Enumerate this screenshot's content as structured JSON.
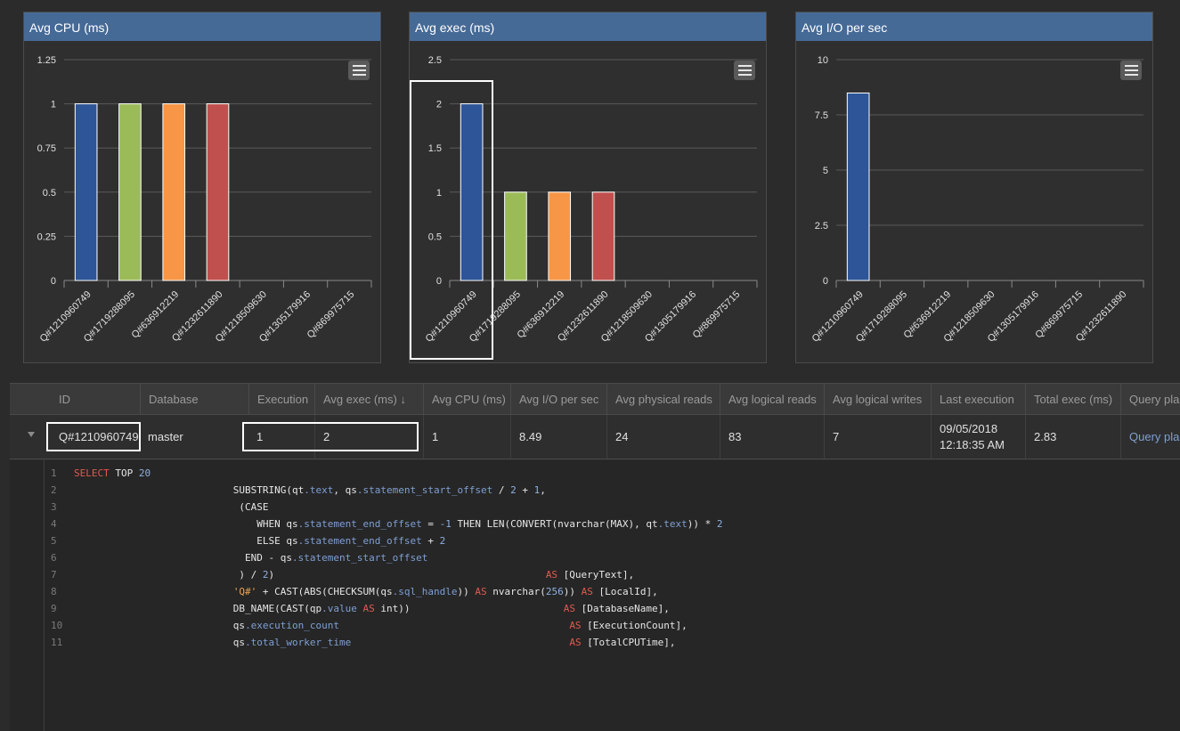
{
  "charts": [
    {
      "title": "Avg CPU (ms)",
      "type": "bar",
      "yticks": [
        "1.25",
        "1",
        "0.75",
        "0.5",
        "0.25",
        "0"
      ],
      "ylim": [
        0,
        1.25
      ],
      "categories": [
        "Q#1210960749",
        "Q#1719288095",
        "Q#636912219",
        "Q#1232611890",
        "Q#1218509630",
        "Q#1305179916",
        "Q#869975715"
      ],
      "values": [
        1,
        1,
        1,
        1,
        0,
        0,
        0
      ],
      "colors": [
        "#2e5597",
        "#9bbb59",
        "#f79646",
        "#c0504d",
        "#2e5597",
        "#2e5597",
        "#2e5597"
      ]
    },
    {
      "title": "Avg exec (ms)",
      "type": "bar",
      "yticks": [
        "2.5",
        "2",
        "1.5",
        "1",
        "0.5",
        "0"
      ],
      "ylim": [
        0,
        2.5
      ],
      "categories": [
        "Q#1210960749",
        "Q#1719288095",
        "Q#636912219",
        "Q#1232611890",
        "Q#1218509630",
        "Q#1305179916",
        "Q#869975715"
      ],
      "values": [
        2,
        1,
        1,
        1,
        0,
        0,
        0
      ],
      "colors": [
        "#2e5597",
        "#9bbb59",
        "#f79646",
        "#c0504d",
        "#2e5597",
        "#2e5597",
        "#2e5597"
      ]
    },
    {
      "title": "Avg I/O per sec",
      "type": "bar",
      "yticks": [
        "10",
        "7.5",
        "5",
        "2.5",
        "0"
      ],
      "ylim": [
        0,
        10
      ],
      "categories": [
        "Q#1210960749",
        "Q#1719288095",
        "Q#636912219",
        "Q#1218509630",
        "Q#1305179916",
        "Q#869975715",
        "Q#1232611890"
      ],
      "values": [
        8.49,
        0,
        0,
        0,
        0,
        0,
        0
      ],
      "colors": [
        "#2e5597",
        "#2e5597",
        "#2e5597",
        "#2e5597",
        "#2e5597",
        "#2e5597",
        "#2e5597"
      ]
    }
  ],
  "table": {
    "headers": [
      "ID",
      "Database",
      "Execution",
      "Avg exec (ms) ↓",
      "Avg CPU (ms)",
      "Avg I/O per sec",
      "Avg physical reads",
      "Avg logical reads",
      "Avg logical writes",
      "Last execution",
      "Total exec (ms)",
      "Query plan"
    ],
    "row": {
      "id": "Q#1210960749",
      "database": "master",
      "execution": "1",
      "avg_exec": "2",
      "avg_cpu": "1",
      "avg_io": "8.49",
      "avg_physical_reads": "24",
      "avg_logical_reads": "83",
      "avg_logical_writes": "7",
      "last_execution_date": "09/05/2018",
      "last_execution_time": "12:18:35 AM",
      "total_exec": "2.83",
      "query_plan": "Query plan"
    }
  },
  "code": {
    "line_numbers": [
      "1",
      "2",
      "3",
      "4",
      "5",
      "6",
      "7",
      "8",
      "9",
      "10",
      "11"
    ]
  }
}
